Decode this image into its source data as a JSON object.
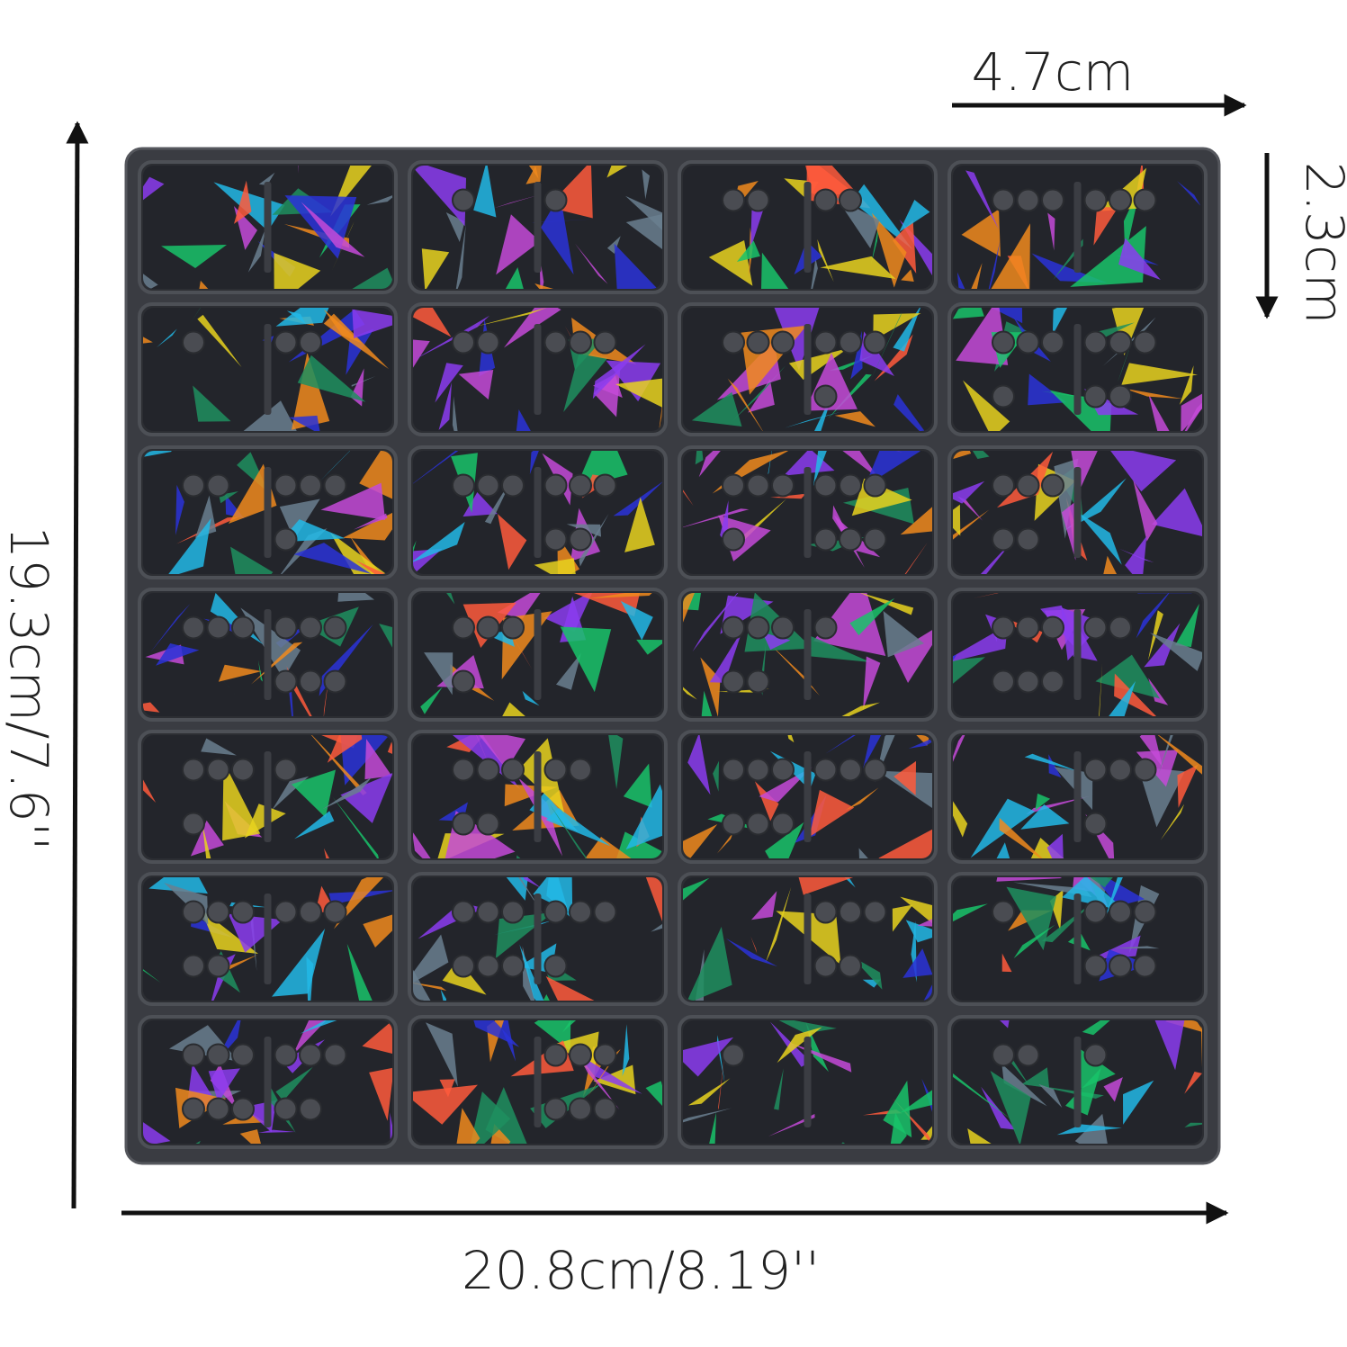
{
  "dimensions": {
    "piece_width": "4.7cm",
    "piece_height": "2.3cm",
    "tray_height": "19.3cm/7.6''",
    "tray_width": "20.8cm/8.19''"
  }
}
